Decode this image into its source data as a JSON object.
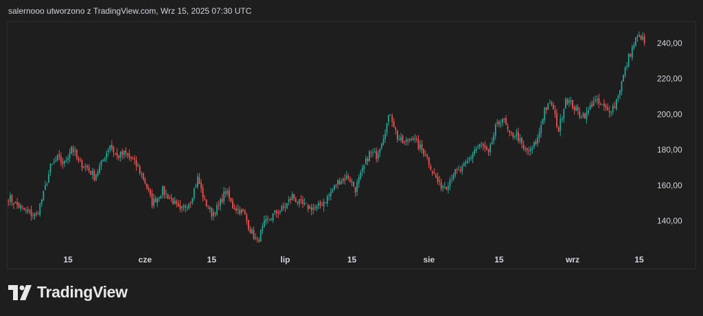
{
  "header": {
    "text": "salernooo utworzono z TradingView.com, Wrz 15, 2025 07:30 UTC"
  },
  "logo": {
    "text": "TradingView"
  },
  "colors": {
    "up": "#26a69a",
    "down": "#ef5350",
    "axis_text": "#d1d4dc",
    "background": "#1e1e1e"
  },
  "chart_data": {
    "type": "candlestick",
    "title": "",
    "xlabel": "",
    "ylabel": "",
    "ylim": [
      122,
      252
    ],
    "y_ticks": [
      {
        "value": 240,
        "label": "240,00"
      },
      {
        "value": 220,
        "label": "220,00"
      },
      {
        "value": 200,
        "label": "200,00"
      },
      {
        "value": 180,
        "label": "180,00"
      },
      {
        "value": 160,
        "label": "160,00"
      },
      {
        "value": 140,
        "label": "140,00"
      }
    ],
    "x_ticks": [
      {
        "label": "15",
        "bar": 34
      },
      {
        "label": "cze",
        "bar": 78
      },
      {
        "label": "15",
        "bar": 116
      },
      {
        "label": "lip",
        "bar": 158
      },
      {
        "label": "15",
        "bar": 196
      },
      {
        "label": "sie",
        "bar": 240
      },
      {
        "label": "15",
        "bar": 280
      },
      {
        "label": "wrz",
        "bar": 322
      },
      {
        "label": "15",
        "bar": 360
      }
    ],
    "approx_close_path": [
      [
        0,
        153
      ],
      [
        10,
        145
      ],
      [
        16,
        143
      ],
      [
        20,
        155
      ],
      [
        24,
        170
      ],
      [
        28,
        175
      ],
      [
        32,
        172
      ],
      [
        36,
        182
      ],
      [
        40,
        173
      ],
      [
        45,
        170
      ],
      [
        49,
        165
      ],
      [
        53,
        172
      ],
      [
        58,
        183
      ],
      [
        62,
        176
      ],
      [
        66,
        178
      ],
      [
        70,
        175
      ],
      [
        74,
        170
      ],
      [
        78,
        162
      ],
      [
        82,
        150
      ],
      [
        88,
        157
      ],
      [
        94,
        151
      ],
      [
        98,
        145
      ],
      [
        104,
        152
      ],
      [
        108,
        164
      ],
      [
        112,
        151
      ],
      [
        116,
        144
      ],
      [
        120,
        148
      ],
      [
        124,
        157
      ],
      [
        128,
        148
      ],
      [
        134,
        145
      ],
      [
        138,
        135
      ],
      [
        142,
        128
      ],
      [
        146,
        138
      ],
      [
        152,
        144
      ],
      [
        158,
        148
      ],
      [
        162,
        154
      ],
      [
        166,
        150
      ],
      [
        170,
        148
      ],
      [
        176,
        147
      ],
      [
        182,
        153
      ],
      [
        188,
        162
      ],
      [
        194,
        165
      ],
      [
        198,
        158
      ],
      [
        202,
        168
      ],
      [
        206,
        178
      ],
      [
        210,
        177
      ],
      [
        214,
        188
      ],
      [
        218,
        201
      ],
      [
        222,
        187
      ],
      [
        226,
        183
      ],
      [
        230,
        188
      ],
      [
        234,
        182
      ],
      [
        238,
        178
      ],
      [
        242,
        168
      ],
      [
        246,
        160
      ],
      [
        250,
        160
      ],
      [
        254,
        167
      ],
      [
        258,
        168
      ],
      [
        262,
        173
      ],
      [
        266,
        180
      ],
      [
        270,
        183
      ],
      [
        274,
        177
      ],
      [
        278,
        192
      ],
      [
        282,
        198
      ],
      [
        286,
        188
      ],
      [
        290,
        189
      ],
      [
        294,
        180
      ],
      [
        298,
        179
      ],
      [
        302,
        186
      ],
      [
        306,
        203
      ],
      [
        310,
        206
      ],
      [
        314,
        191
      ],
      [
        318,
        209
      ],
      [
        322,
        205
      ],
      [
        326,
        200
      ],
      [
        330,
        200
      ],
      [
        334,
        208
      ],
      [
        338,
        205
      ],
      [
        342,
        202
      ],
      [
        346,
        205
      ],
      [
        350,
        218
      ],
      [
        354,
        232
      ],
      [
        358,
        242
      ],
      [
        361,
        244
      ],
      [
        363,
        240
      ]
    ],
    "bars": 364
  }
}
